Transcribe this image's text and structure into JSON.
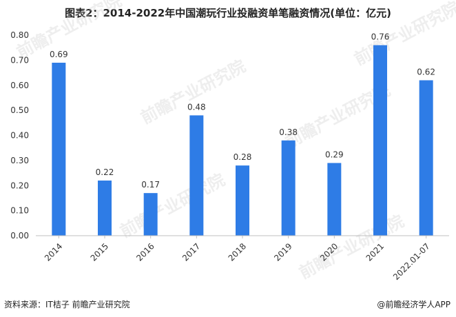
{
  "title": "图表2：2014-2022年中国潮玩行业投融资单笔融资情况(单位：亿元)",
  "source": "资料来源：IT桔子 前瞻产业研究院",
  "brand": "@前瞻经济学人APP",
  "watermark": "前瞻产业研究院",
  "colors": {
    "bar": "#2E7CE6",
    "axis": "#bfbfbf",
    "grid": "#e6e6e6"
  },
  "chart_data": {
    "type": "bar",
    "categories": [
      "2014",
      "2015",
      "2016",
      "2017",
      "2018",
      "2019",
      "2020",
      "2021",
      "2022.01-07"
    ],
    "values": [
      0.69,
      0.22,
      0.17,
      0.48,
      0.28,
      0.38,
      0.29,
      0.76,
      0.62
    ],
    "value_labels": [
      "0.69",
      "0.22",
      "0.17",
      "0.48",
      "0.28",
      "0.38",
      "0.29",
      "0.76",
      "0.62"
    ],
    "yticks": [
      "0.00",
      "0.10",
      "0.20",
      "0.30",
      "0.40",
      "0.50",
      "0.60",
      "0.70",
      "0.80"
    ],
    "ylim": [
      0,
      0.8
    ],
    "xlabel": "",
    "ylabel": "",
    "grid": false,
    "legend": "none"
  }
}
